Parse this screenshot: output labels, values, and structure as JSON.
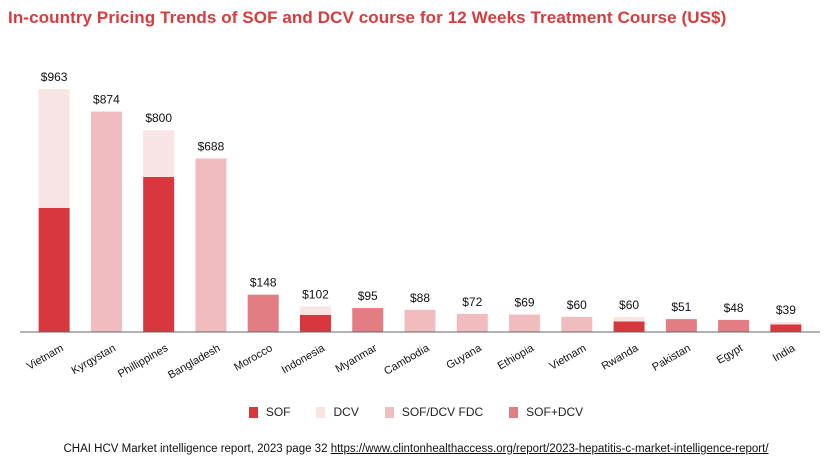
{
  "chart_data": {
    "type": "bar",
    "stacked": true,
    "title": "In-country Pricing Trends of SOF and DCV course for 12 Weeks Treatment Course (US$)",
    "categories": [
      "Vietnam",
      "Kyrgystan",
      "Phillippines",
      "Bangladesh",
      "Morocco",
      "Indonesia",
      "Myanmar",
      "Cambodia",
      "Guyana",
      "Ethiopia",
      "Vietnam",
      "Rwanda",
      "Pakistan",
      "Egypt",
      "India"
    ],
    "series": [
      {
        "name": "SOF",
        "color": "#d8383d",
        "values": [
          492,
          0,
          615,
          0,
          0,
          68,
          0,
          0,
          0,
          0,
          0,
          42,
          0,
          0,
          30
        ]
      },
      {
        "name": "DCV",
        "color": "#f8e4e5",
        "values": [
          471,
          0,
          185,
          0,
          0,
          34,
          0,
          0,
          0,
          0,
          0,
          18,
          0,
          0,
          9
        ]
      },
      {
        "name": "SOF/DCV FDC",
        "color": "#f0bcc0",
        "values": [
          0,
          874,
          0,
          688,
          0,
          0,
          0,
          88,
          72,
          69,
          60,
          0,
          0,
          0,
          0
        ]
      },
      {
        "name": "SOF+DCV",
        "color": "#e27d83",
        "values": [
          0,
          0,
          0,
          0,
          148,
          0,
          95,
          0,
          0,
          0,
          0,
          0,
          51,
          48,
          0
        ]
      }
    ],
    "totals": [
      963,
      874,
      800,
      688,
      148,
      102,
      95,
      88,
      72,
      69,
      60,
      60,
      51,
      48,
      39
    ],
    "total_labels": [
      "$963",
      "$874",
      "$800",
      "$688",
      "$148",
      "$102",
      "$95",
      "$88",
      "$72",
      "$69",
      "$60",
      "$60",
      "$51",
      "$48",
      "$39"
    ],
    "ylim": [
      0,
      1000
    ],
    "xlabel": "",
    "ylabel": "",
    "grid": false,
    "legend_position": "bottom-center"
  },
  "footer": {
    "source_text": "CHAI HCV Market intelligence report, 2023 page 32",
    "source_url": "https://www.clintonhealthaccess.org/report/2023-hepatitis-c-market-intelligence-report/"
  }
}
